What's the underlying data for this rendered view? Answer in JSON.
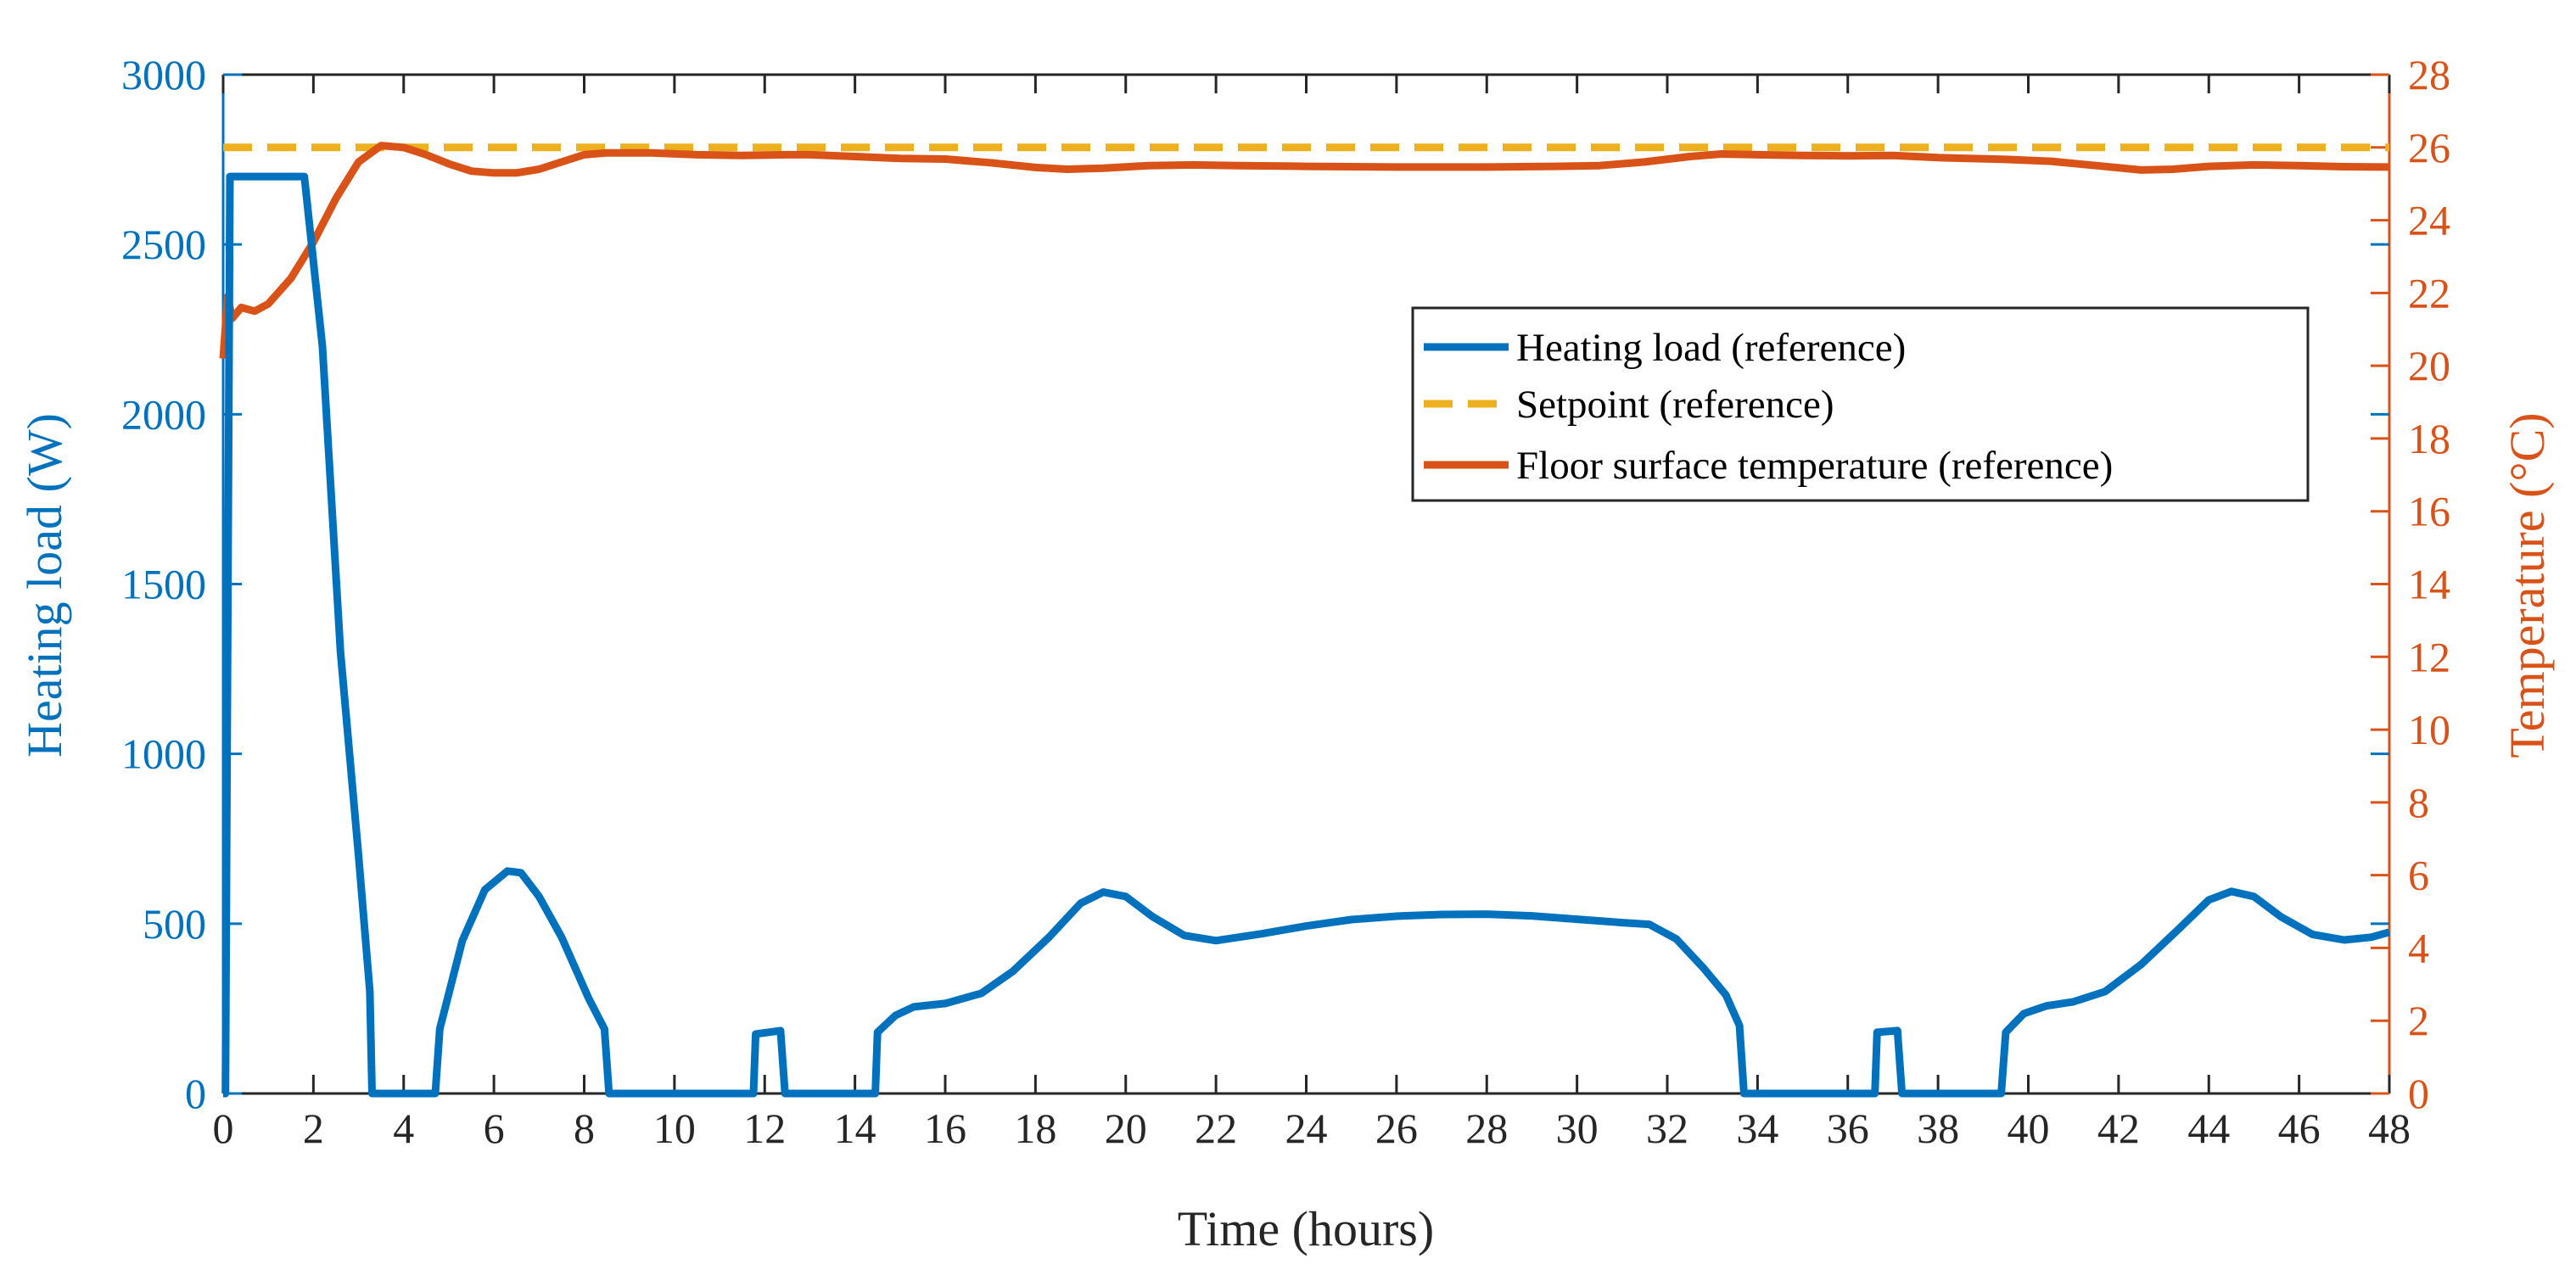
{
  "chart_data": {
    "type": "line",
    "title": "",
    "xlabel": "Time (hours)",
    "ylabel_left": "Heating load (W)",
    "ylabel_right": "Temperature (°C)",
    "xlim": [
      0,
      48
    ],
    "ylim_left": [
      0,
      3000
    ],
    "ylim_right": [
      0,
      28
    ],
    "x_ticks": [
      "0",
      "2",
      "4",
      "6",
      "8",
      "10",
      "12",
      "14",
      "16",
      "18",
      "20",
      "22",
      "24",
      "26",
      "28",
      "30",
      "32",
      "34",
      "36",
      "38",
      "40",
      "42",
      "44",
      "46",
      "48"
    ],
    "y_left_ticks": [
      "0",
      "500",
      "1000",
      "1500",
      "2000",
      "2500",
      "3000"
    ],
    "y_right_ticks": [
      "0",
      "2",
      "4",
      "6",
      "8",
      "10",
      "12",
      "14",
      "16",
      "18",
      "20",
      "22",
      "24",
      "26",
      "28"
    ],
    "grid": false,
    "legend_location": "upper-right-inside",
    "colors": {
      "left_axis": "#0072BD",
      "right_axis": "#D95319",
      "setpoint": "#EDB120",
      "frame": "#262626"
    },
    "series": [
      {
        "name": "Heating load (reference)",
        "axis": "left",
        "color": "#0072BD",
        "style": "solid",
        "points": [
          [
            0,
            0
          ],
          [
            0.05,
            0
          ],
          [
            0.15,
            2700
          ],
          [
            1.8,
            2700
          ],
          [
            2.2,
            2200
          ],
          [
            2.6,
            1300
          ],
          [
            3.0,
            700
          ],
          [
            3.25,
            300
          ],
          [
            3.3,
            0
          ],
          [
            4.7,
            0
          ],
          [
            4.8,
            190
          ],
          [
            5.3,
            450
          ],
          [
            5.8,
            600
          ],
          [
            6.3,
            655
          ],
          [
            6.6,
            650
          ],
          [
            7.0,
            580
          ],
          [
            7.5,
            460
          ],
          [
            8.1,
            280
          ],
          [
            8.45,
            190
          ],
          [
            8.55,
            0
          ],
          [
            11.75,
            0
          ],
          [
            11.8,
            175
          ],
          [
            12.35,
            185
          ],
          [
            12.45,
            0
          ],
          [
            14.45,
            0
          ],
          [
            14.5,
            180
          ],
          [
            14.9,
            230
          ],
          [
            15.3,
            255
          ],
          [
            16.0,
            265
          ],
          [
            16.8,
            295
          ],
          [
            17.5,
            360
          ],
          [
            18.3,
            460
          ],
          [
            19.0,
            560
          ],
          [
            19.5,
            593
          ],
          [
            20.0,
            580
          ],
          [
            20.6,
            520
          ],
          [
            21.3,
            465
          ],
          [
            22.0,
            450
          ],
          [
            23.0,
            470
          ],
          [
            24.0,
            493
          ],
          [
            25.0,
            512
          ],
          [
            26.0,
            522
          ],
          [
            27.0,
            527
          ],
          [
            28.0,
            528
          ],
          [
            29.0,
            523
          ],
          [
            30.0,
            513
          ],
          [
            31.0,
            503
          ],
          [
            31.6,
            498
          ],
          [
            32.2,
            455
          ],
          [
            32.8,
            370
          ],
          [
            33.3,
            290
          ],
          [
            33.6,
            200
          ],
          [
            33.7,
            0
          ],
          [
            36.6,
            0
          ],
          [
            36.65,
            180
          ],
          [
            37.1,
            185
          ],
          [
            37.2,
            0
          ],
          [
            39.4,
            0
          ],
          [
            39.5,
            180
          ],
          [
            39.9,
            235
          ],
          [
            40.4,
            258
          ],
          [
            41.0,
            270
          ],
          [
            41.7,
            300
          ],
          [
            42.5,
            380
          ],
          [
            43.3,
            480
          ],
          [
            44.0,
            570
          ],
          [
            44.5,
            595
          ],
          [
            45.0,
            580
          ],
          [
            45.6,
            520
          ],
          [
            46.3,
            468
          ],
          [
            47.0,
            452
          ],
          [
            47.6,
            460
          ],
          [
            48.0,
            475
          ]
        ]
      },
      {
        "name": "Setpoint (reference)",
        "axis": "right",
        "color": "#EDB120",
        "style": "dashed",
        "points": [
          [
            0,
            26
          ],
          [
            48,
            26
          ]
        ]
      },
      {
        "name": "Floor surface temperature (reference)",
        "axis": "right",
        "color": "#D95319",
        "style": "solid",
        "points": [
          [
            0,
            20.2
          ],
          [
            0.1,
            21.9
          ],
          [
            0.2,
            21.3
          ],
          [
            0.4,
            21.6
          ],
          [
            0.7,
            21.5
          ],
          [
            1.0,
            21.7
          ],
          [
            1.5,
            22.4
          ],
          [
            2.0,
            23.4
          ],
          [
            2.5,
            24.6
          ],
          [
            3.0,
            25.6
          ],
          [
            3.5,
            26.05
          ],
          [
            4.0,
            26.0
          ],
          [
            4.5,
            25.8
          ],
          [
            5.0,
            25.55
          ],
          [
            5.5,
            25.35
          ],
          [
            6.0,
            25.3
          ],
          [
            6.5,
            25.3
          ],
          [
            7.0,
            25.4
          ],
          [
            7.5,
            25.6
          ],
          [
            8.0,
            25.8
          ],
          [
            8.5,
            25.85
          ],
          [
            9.5,
            25.85
          ],
          [
            10.5,
            25.8
          ],
          [
            11.5,
            25.78
          ],
          [
            12.5,
            25.8
          ],
          [
            13.0,
            25.8
          ],
          [
            14.0,
            25.75
          ],
          [
            15.0,
            25.7
          ],
          [
            16.0,
            25.68
          ],
          [
            17.0,
            25.58
          ],
          [
            18.0,
            25.45
          ],
          [
            18.7,
            25.4
          ],
          [
            19.5,
            25.43
          ],
          [
            20.5,
            25.5
          ],
          [
            21.5,
            25.52
          ],
          [
            22.5,
            25.5
          ],
          [
            24.0,
            25.48
          ],
          [
            26.0,
            25.46
          ],
          [
            28.0,
            25.46
          ],
          [
            29.5,
            25.48
          ],
          [
            30.5,
            25.5
          ],
          [
            31.5,
            25.6
          ],
          [
            32.5,
            25.75
          ],
          [
            33.2,
            25.82
          ],
          [
            34.0,
            25.8
          ],
          [
            35.0,
            25.78
          ],
          [
            36.0,
            25.77
          ],
          [
            37.0,
            25.78
          ],
          [
            38.0,
            25.72
          ],
          [
            39.5,
            25.67
          ],
          [
            40.5,
            25.62
          ],
          [
            41.5,
            25.5
          ],
          [
            42.5,
            25.38
          ],
          [
            43.2,
            25.4
          ],
          [
            44.0,
            25.48
          ],
          [
            45.0,
            25.52
          ],
          [
            46.0,
            25.5
          ],
          [
            47.0,
            25.47
          ],
          [
            48.0,
            25.46
          ]
        ]
      }
    ]
  }
}
